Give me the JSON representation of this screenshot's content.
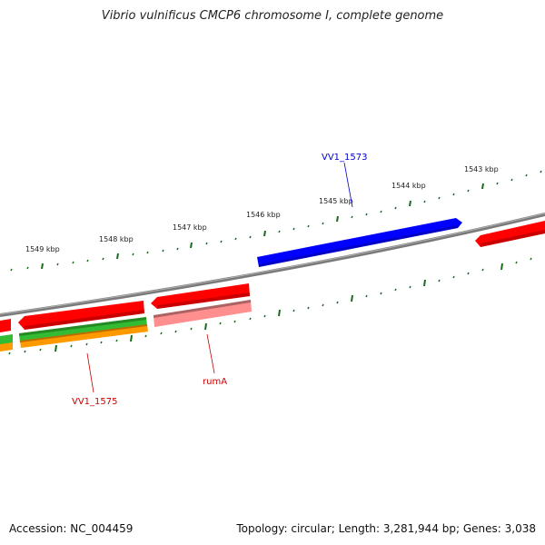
{
  "title": "Vibrio vulnificus CMCP6 chromosome I, complete genome",
  "footer": {
    "accession": "Accession: NC_004459",
    "stats": "Topology: circular; Length: 3,281,944 bp; Genes: 3,038"
  },
  "colors": {
    "backbone": "#808080",
    "tick": "#1a6b1a",
    "forward_cds": "#0000ff",
    "reverse_cds": "#ff0000",
    "rrna_like": "#ff9090",
    "green_track": "#33bb33",
    "orange_track": "#ff9900",
    "label_blue": "#0000cc",
    "label_red": "#cc0000"
  },
  "scale_labels": [
    "1549 kbp",
    "1548 kbp",
    "1547 kbp",
    "1546 kbp",
    "1545 kbp",
    "1544 kbp",
    "1543 kbp"
  ],
  "gene_labels": {
    "vv1_1573": "VV1_1573",
    "rumA": "rumA",
    "vv1_1575": "VV1_1575"
  }
}
